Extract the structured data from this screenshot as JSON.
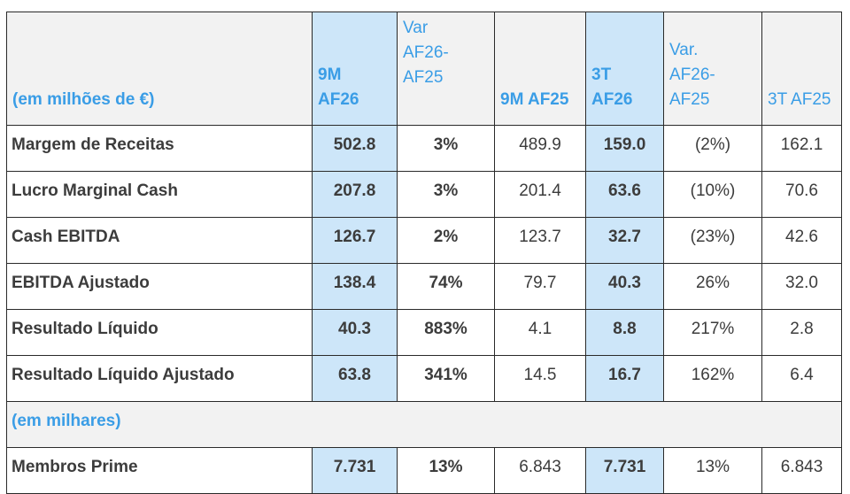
{
  "header": {
    "unit_label": "(em milhões de €)",
    "col_9m_af26": "9M\nAF26",
    "col_var_9m": "Var\nAF26-\nAF25",
    "col_9m_af25": "9M AF25",
    "col_3t_af26": "3T\nAF26",
    "col_var_3t": "Var.\nAF26-\nAF25",
    "col_3t_af25": "3T AF25"
  },
  "rows": [
    {
      "label": "Margem de Receitas",
      "v1": "502.8",
      "v2": "3%",
      "v3": "489.9",
      "v4": "159.0",
      "v5": "(2%)",
      "v6": "162.1"
    },
    {
      "label": "Lucro Marginal Cash",
      "v1": "207.8",
      "v2": "3%",
      "v3": "201.4",
      "v4": "63.6",
      "v5": "(10%)",
      "v6": "70.6"
    },
    {
      "label": "Cash EBITDA",
      "v1": "126.7",
      "v2": "2%",
      "v3": "123.7",
      "v4": "32.7",
      "v5": "(23%)",
      "v6": "42.6"
    },
    {
      "label": "EBITDA Ajustado",
      "v1": "138.4",
      "v2": "74%",
      "v3": "79.7",
      "v4": "40.3",
      "v5": "26%",
      "v6": "32.0"
    },
    {
      "label": "Resultado Líquido",
      "v1": "40.3",
      "v2": "883%",
      "v3": "4.1",
      "v4": "8.8",
      "v5": "217%",
      "v6": "2.8"
    },
    {
      "label": "Resultado Líquido Ajustado",
      "v1": "63.8",
      "v2": "341%",
      "v3": "14.5",
      "v4": "16.7",
      "v5": "162%",
      "v6": "6.4"
    }
  ],
  "section2": {
    "unit_label": "(em milhares)",
    "row": {
      "label": "Membros Prime",
      "v1": "7.731",
      "v2": "13%",
      "v3": "6.843",
      "v4": "7.731",
      "v5": "13%",
      "v6": "6.843"
    }
  },
  "colors": {
    "highlight": "#cde6f9",
    "header_text": "#3a9de6",
    "grey": "#f2f2f2"
  }
}
